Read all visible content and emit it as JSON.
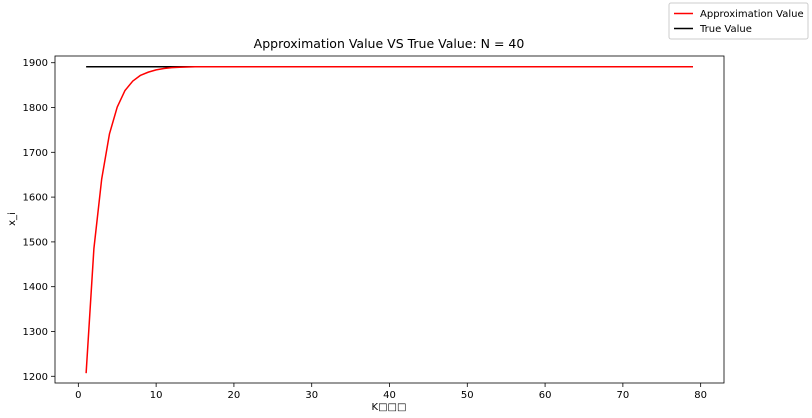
{
  "chart_data": {
    "type": "line",
    "title": "Approximation Value VS True Value: N = 40",
    "xlabel": "K□□□",
    "ylabel": "x_i",
    "xlim": [
      -3,
      83
    ],
    "ylim": [
      1185,
      1915
    ],
    "x_ticks": [
      0,
      10,
      20,
      30,
      40,
      50,
      60,
      70,
      80
    ],
    "y_ticks": [
      1200,
      1300,
      1400,
      1500,
      1600,
      1700,
      1800,
      1900
    ],
    "grid": false,
    "legend_position": "top-right",
    "series": [
      {
        "name": "Approximation Value",
        "color": "#ff0000",
        "x": [
          1,
          2,
          3,
          4,
          5,
          6,
          7,
          8,
          9,
          10,
          11,
          12,
          13,
          14,
          15,
          16,
          17,
          18,
          19,
          20,
          25,
          30,
          40,
          50,
          60,
          70,
          79
        ],
        "y": [
          1207,
          1485,
          1640,
          1741,
          1801,
          1838,
          1859,
          1872,
          1879,
          1884,
          1887,
          1889,
          1890,
          1890.5,
          1891,
          1891,
          1891,
          1891,
          1891,
          1891,
          1891,
          1891,
          1891,
          1891,
          1891,
          1891,
          1891
        ]
      },
      {
        "name": "True Value",
        "color": "#000000",
        "x": [
          1,
          79
        ],
        "y": [
          1891,
          1891
        ]
      }
    ]
  }
}
